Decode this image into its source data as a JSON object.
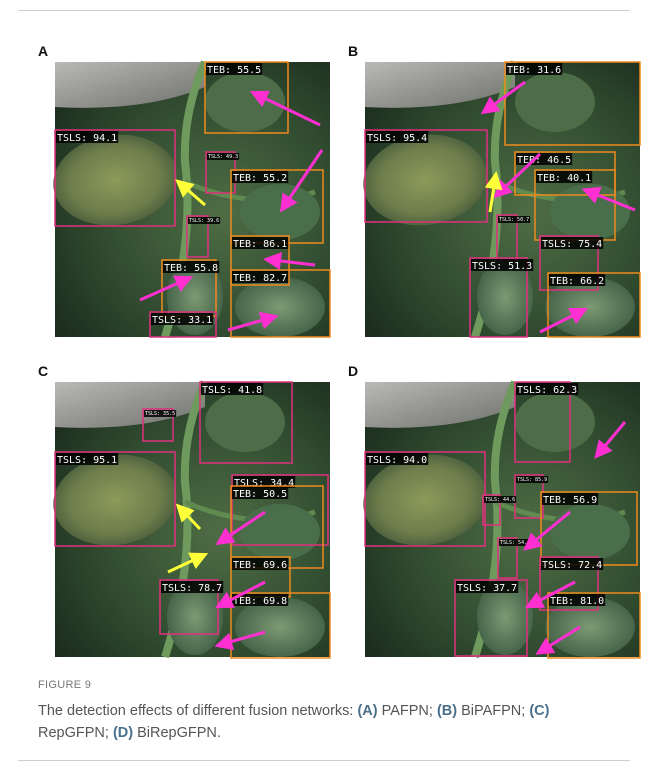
{
  "figure": {
    "panels": [
      {
        "letter": "A",
        "boxes": [
          "TEB: 55.5",
          "TSLS: 94.1",
          "TSLS: 49.3",
          "TEB: 55.2",
          "TSLS: 39.6",
          "TEB: 86.1",
          "TEB: 55.8",
          "TEB: 82.7",
          "TSLS: 33.1"
        ]
      },
      {
        "letter": "B",
        "boxes": [
          "TEB: 31.6",
          "TSLS: 95.4",
          "TEB: 46.5",
          "TEB: 40.1",
          "TSLS: 50.7",
          "TSLS: 75.4",
          "TSLS: 51.3",
          "TEB: 66.2"
        ]
      },
      {
        "letter": "C",
        "boxes": [
          "TSLS: 35.5",
          "TSLS: 41.8",
          "TSLS: 95.1",
          "TSLS: 34.4",
          "TEB: 50.5",
          "TEB: 69.6",
          "TSLS: 78.7",
          "TEB: 69.8"
        ]
      },
      {
        "letter": "D",
        "boxes": [
          "TSLS: 62.3",
          "TSLS: 94.0",
          "TSLS: 85.9",
          "TSLS: 44.6",
          "TEB: 56.9",
          "TSLS: 54.4",
          "TSLS: 72.4",
          "TSLS: 37.7",
          "TEB: 81.0"
        ]
      }
    ],
    "label": "FIGURE 9",
    "caption": [
      "The detection effects of different fusion networks: ",
      "(A)",
      " PAFPN; ",
      "(B)",
      " BiPAFPN; ",
      "(C)",
      " RepGFPN; ",
      "(D)",
      " BiRepGFPN."
    ]
  }
}
